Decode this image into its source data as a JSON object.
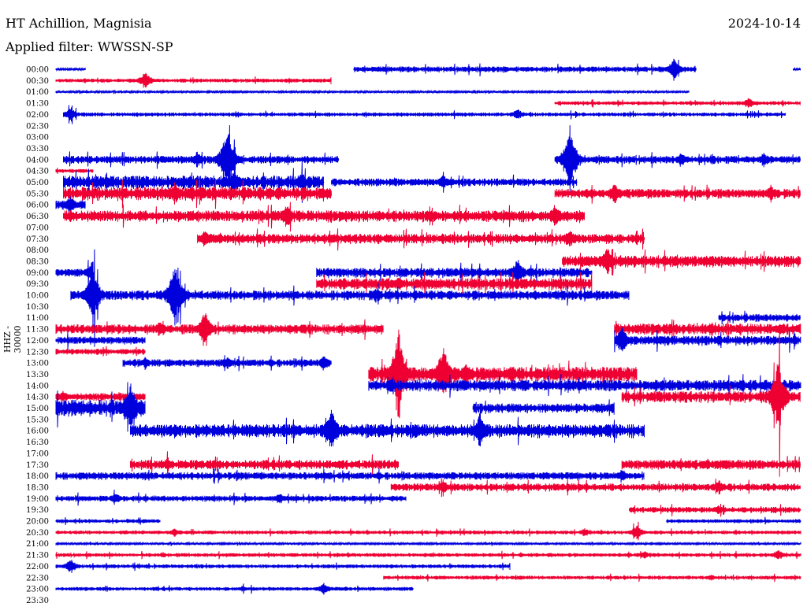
{
  "header": {
    "station": "HT Achillion, Magnisia",
    "date": "2024-10-14",
    "filter": "Applied filter: WWSSN-SP",
    "channel": "HHZ - 30000"
  },
  "chart_data": {
    "type": "line",
    "title": "HT Achillion, Magnisia",
    "ylabel": "HHZ - 30000",
    "xlabel": "",
    "colors": {
      "blue": "#0000dd",
      "red": "#ee0033"
    },
    "rows": [
      {
        "label": "00:00",
        "color": "blue",
        "segs": [
          [
            0.0,
            0.04,
            1
          ],
          [
            0.4,
            0.86,
            3
          ],
          [
            0.99,
            1.0,
            1
          ]
        ],
        "events": [
          [
            0.83,
            14
          ]
        ]
      },
      {
        "label": "00:30",
        "color": "red",
        "segs": [
          [
            0.0,
            0.37,
            2
          ]
        ],
        "events": [
          [
            0.12,
            12
          ]
        ]
      },
      {
        "label": "01:00",
        "color": "blue",
        "segs": [
          [
            0.0,
            0.85,
            1
          ]
        ],
        "events": []
      },
      {
        "label": "01:30",
        "color": "red",
        "segs": [
          [
            0.67,
            1.0,
            2
          ]
        ],
        "events": [
          [
            0.93,
            7
          ]
        ]
      },
      {
        "label": "02:00",
        "color": "blue",
        "segs": [
          [
            0.01,
            0.98,
            2
          ]
        ],
        "events": [
          [
            0.02,
            10
          ],
          [
            0.62,
            8
          ]
        ]
      },
      {
        "label": "02:30",
        "color": "blue",
        "segs": [],
        "events": []
      },
      {
        "label": "03:00",
        "color": "blue",
        "segs": [],
        "events": []
      },
      {
        "label": "03:30",
        "color": "blue",
        "segs": [],
        "events": []
      },
      {
        "label": "04:00",
        "color": "blue",
        "segs": [
          [
            0.01,
            0.38,
            4
          ],
          [
            0.67,
            1.0,
            4
          ]
        ],
        "events": [
          [
            0.23,
            45
          ],
          [
            0.19,
            12
          ],
          [
            0.69,
            45
          ],
          [
            0.84,
            10
          ],
          [
            0.95,
            10
          ]
        ]
      },
      {
        "label": "04:30",
        "color": "red",
        "segs": [
          [
            0.0,
            0.05,
            2
          ]
        ],
        "events": []
      },
      {
        "label": "05:00",
        "color": "blue",
        "segs": [
          [
            0.01,
            0.36,
            7
          ],
          [
            0.37,
            0.7,
            4
          ]
        ],
        "events": [
          [
            0.24,
            16
          ],
          [
            0.33,
            14
          ],
          [
            0.52,
            10
          ]
        ]
      },
      {
        "label": "05:30",
        "color": "red",
        "segs": [
          [
            0.01,
            0.37,
            7
          ],
          [
            0.67,
            1.0,
            5
          ]
        ],
        "events": [
          [
            0.16,
            16
          ],
          [
            0.75,
            14
          ],
          [
            0.96,
            12
          ]
        ]
      },
      {
        "label": "06:00",
        "color": "blue",
        "segs": [
          [
            0.0,
            0.04,
            5
          ]
        ],
        "events": [
          [
            0.02,
            12
          ]
        ]
      },
      {
        "label": "06:30",
        "color": "red",
        "segs": [
          [
            0.01,
            0.71,
            6
          ]
        ],
        "events": [
          [
            0.31,
            16
          ],
          [
            0.67,
            16
          ],
          [
            0.02,
            8
          ]
        ]
      },
      {
        "label": "07:00",
        "color": "red",
        "segs": [],
        "events": []
      },
      {
        "label": "07:30",
        "color": "red",
        "segs": [
          [
            0.19,
            0.79,
            5
          ]
        ],
        "events": [
          [
            0.2,
            12
          ],
          [
            0.69,
            14
          ]
        ]
      },
      {
        "label": "08:00",
        "color": "red",
        "segs": [],
        "events": []
      },
      {
        "label": "08:30",
        "color": "red",
        "segs": [
          [
            0.68,
            1.0,
            6
          ]
        ],
        "events": [
          [
            0.74,
            20
          ],
          [
            0.88,
            8
          ]
        ]
      },
      {
        "label": "09:00",
        "color": "blue",
        "segs": [
          [
            0.0,
            0.05,
            4
          ],
          [
            0.35,
            0.72,
            5
          ]
        ],
        "events": [
          [
            0.05,
            18
          ],
          [
            0.62,
            20
          ]
        ]
      },
      {
        "label": "09:30",
        "color": "red",
        "segs": [
          [
            0.35,
            0.72,
            6
          ]
        ],
        "events": [
          [
            0.46,
            10
          ],
          [
            0.63,
            8
          ]
        ]
      },
      {
        "label": "10:00",
        "color": "blue",
        "segs": [
          [
            0.02,
            0.77,
            5
          ]
        ],
        "events": [
          [
            0.05,
            38
          ],
          [
            0.16,
            45
          ],
          [
            0.43,
            10
          ],
          [
            0.68,
            8
          ]
        ]
      },
      {
        "label": "10:30",
        "color": "blue",
        "segs": [],
        "events": []
      },
      {
        "label": "11:00",
        "color": "blue",
        "segs": [
          [
            0.89,
            1.0,
            4
          ]
        ],
        "events": []
      },
      {
        "label": "11:30",
        "color": "red",
        "segs": [
          [
            0.0,
            0.44,
            5
          ],
          [
            0.75,
            1.0,
            6
          ]
        ],
        "events": [
          [
            0.2,
            24
          ],
          [
            0.14,
            12
          ],
          [
            0.88,
            10
          ]
        ]
      },
      {
        "label": "12:00",
        "color": "blue",
        "segs": [
          [
            0.0,
            0.12,
            4
          ],
          [
            0.75,
            1.0,
            5
          ]
        ],
        "events": [
          [
            0.76,
            20
          ],
          [
            0.2,
            8
          ]
        ]
      },
      {
        "label": "12:30",
        "color": "red",
        "segs": [
          [
            0.0,
            0.12,
            3
          ]
        ],
        "events": []
      },
      {
        "label": "13:00",
        "color": "blue",
        "segs": [
          [
            0.09,
            0.37,
            4
          ]
        ],
        "events": [
          [
            0.12,
            8
          ],
          [
            0.23,
            8
          ],
          [
            0.36,
            10
          ]
        ]
      },
      {
        "label": "13:30",
        "color": "red",
        "segs": [
          [
            0.42,
            0.78,
            8
          ]
        ],
        "events": [
          [
            0.46,
            60
          ],
          [
            0.52,
            40
          ],
          [
            0.55,
            16
          ]
        ]
      },
      {
        "label": "14:00",
        "color": "blue",
        "segs": [
          [
            0.42,
            1.0,
            6
          ]
        ],
        "events": [
          [
            0.45,
            10
          ],
          [
            0.92,
            10
          ]
        ]
      },
      {
        "label": "14:30",
        "color": "red",
        "segs": [
          [
            0.0,
            0.12,
            4
          ],
          [
            0.76,
            1.0,
            6
          ]
        ],
        "events": [
          [
            0.01,
            8
          ],
          [
            0.97,
            52
          ]
        ]
      },
      {
        "label": "15:00",
        "color": "blue",
        "segs": [
          [
            0.0,
            0.12,
            9
          ],
          [
            0.56,
            0.75,
            5
          ]
        ],
        "events": [
          [
            0.1,
            38
          ],
          [
            0.75,
            10
          ]
        ]
      },
      {
        "label": "15:30",
        "color": "blue",
        "segs": [],
        "events": []
      },
      {
        "label": "16:00",
        "color": "blue",
        "segs": [
          [
            0.1,
            0.79,
            7
          ]
        ],
        "events": [
          [
            0.37,
            30
          ],
          [
            0.57,
            26
          ],
          [
            0.08,
            18
          ]
        ]
      },
      {
        "label": "16:30",
        "color": "blue",
        "segs": [],
        "events": []
      },
      {
        "label": "17:00",
        "color": "blue",
        "segs": [],
        "events": []
      },
      {
        "label": "17:30",
        "color": "red",
        "segs": [
          [
            0.1,
            0.46,
            5
          ],
          [
            0.76,
            1.0,
            5
          ]
        ],
        "events": [
          [
            0.15,
            10
          ],
          [
            0.9,
            8
          ]
        ]
      },
      {
        "label": "18:00",
        "color": "blue",
        "segs": [
          [
            0.0,
            0.79,
            4
          ]
        ],
        "events": [
          [
            0.76,
            10
          ]
        ]
      },
      {
        "label": "18:30",
        "color": "red",
        "segs": [
          [
            0.45,
            1.0,
            4
          ]
        ],
        "events": [
          [
            0.52,
            10
          ],
          [
            0.89,
            10
          ]
        ]
      },
      {
        "label": "19:00",
        "color": "blue",
        "segs": [
          [
            0.0,
            0.47,
            3
          ]
        ],
        "events": [
          [
            0.08,
            8
          ],
          [
            0.3,
            8
          ]
        ]
      },
      {
        "label": "19:30",
        "color": "red",
        "segs": [
          [
            0.77,
            1.0,
            3
          ]
        ],
        "events": [
          [
            0.89,
            6
          ]
        ]
      },
      {
        "label": "20:00",
        "color": "blue",
        "segs": [
          [
            0.0,
            0.14,
            2
          ],
          [
            0.82,
            1.0,
            2
          ]
        ],
        "events": []
      },
      {
        "label": "20:30",
        "color": "red",
        "segs": [
          [
            0.0,
            1.0,
            2
          ]
        ],
        "events": [
          [
            0.16,
            6
          ],
          [
            0.78,
            10
          ],
          [
            0.71,
            6
          ]
        ]
      },
      {
        "label": "21:00",
        "color": "blue",
        "segs": [
          [
            0.0,
            1.0,
            1
          ]
        ],
        "events": []
      },
      {
        "label": "21:30",
        "color": "red",
        "segs": [
          [
            0.0,
            1.0,
            2
          ]
        ],
        "events": [
          [
            0.79,
            6
          ],
          [
            0.97,
            8
          ]
        ]
      },
      {
        "label": "22:00",
        "color": "blue",
        "segs": [
          [
            0.0,
            0.61,
            2
          ]
        ],
        "events": [
          [
            0.02,
            10
          ]
        ]
      },
      {
        "label": "22:30",
        "color": "red",
        "segs": [
          [
            0.44,
            1.0,
            2
          ]
        ],
        "events": [
          [
            0.88,
            4
          ]
        ]
      },
      {
        "label": "23:00",
        "color": "blue",
        "segs": [
          [
            0.0,
            0.48,
            2
          ]
        ],
        "events": [
          [
            0.36,
            8
          ],
          [
            0.25,
            4
          ]
        ]
      },
      {
        "label": "23:30",
        "color": "blue",
        "segs": [],
        "events": []
      }
    ]
  }
}
